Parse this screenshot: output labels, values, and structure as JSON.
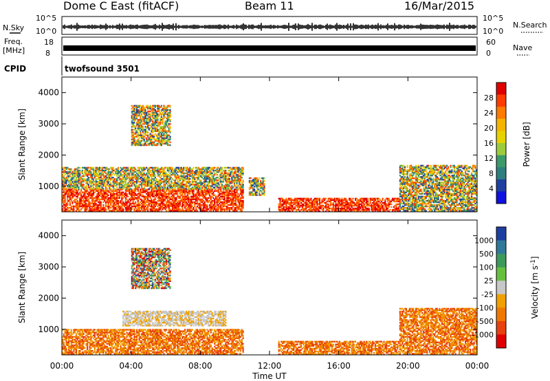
{
  "header": {
    "station": "Dome C East (fitACF)",
    "beam": "Beam 11",
    "date": "16/Mar/2015"
  },
  "status_panel": {
    "nsky_label": "N.Sky",
    "nsky_ticks": [
      "10^5",
      "10^0"
    ],
    "nsearch_label": "N.Search",
    "nsearch_ticks": [
      "10^5",
      "10^0"
    ],
    "freq_label_1": "Freq.",
    "freq_label_2": "[MHz]",
    "freq_ticks": [
      "18",
      "8"
    ],
    "nave_label": "Nave",
    "nave_ticks": [
      "60",
      "0"
    ],
    "cpid_label": "CPID",
    "cpid_value": "twofsound 3501"
  },
  "chart_data": [
    {
      "type": "heatmap",
      "name": "power",
      "ylabel": "Slant Range [km]",
      "yticks": [
        "1000",
        "2000",
        "3000",
        "4000"
      ],
      "ylim": [
        180,
        4500
      ],
      "xlim": [
        0,
        24
      ],
      "xticks": [
        "00:00",
        "04:00",
        "08:00",
        "12:00",
        "16:00",
        "20:00",
        "00:00"
      ],
      "colorbar": {
        "label": "Power [dB]",
        "ticks": [
          "28",
          "24",
          "20",
          "16",
          "12",
          "8",
          "4"
        ],
        "colors": [
          "#e00000",
          "#ff3c00",
          "#ff7a00",
          "#f4b400",
          "#e6d200",
          "#9ccc3c",
          "#3c9a6a",
          "#2d7f7f",
          "#2040a0",
          "#1010e0"
        ]
      },
      "regions": [
        {
          "t": [
            0.0,
            10.5
          ],
          "r": [
            200,
            900
          ],
          "level": "high"
        },
        {
          "t": [
            0.0,
            10.5
          ],
          "r": [
            900,
            1600
          ],
          "level": "mid"
        },
        {
          "t": [
            4.0,
            6.3
          ],
          "r": [
            2300,
            3600
          ],
          "level": "mid"
        },
        {
          "t": [
            10.8,
            11.7
          ],
          "r": [
            700,
            1300
          ],
          "level": "mid"
        },
        {
          "t": [
            12.5,
            19.5
          ],
          "r": [
            180,
            650
          ],
          "level": "high"
        },
        {
          "t": [
            19.5,
            24.0
          ],
          "r": [
            200,
            1700
          ],
          "level": "mid"
        }
      ]
    },
    {
      "type": "heatmap",
      "name": "velocity",
      "ylabel": "Slant Range [km]",
      "yticks": [
        "1000",
        "2000",
        "3000",
        "4000"
      ],
      "ylim": [
        180,
        4500
      ],
      "xlim": [
        0,
        24
      ],
      "xticks": [
        "00:00",
        "04:00",
        "08:00",
        "12:00",
        "16:00",
        "20:00",
        "00:00"
      ],
      "xlabel": "Time UT",
      "colorbar": {
        "label": "Velocity [m s^-1]",
        "ticks": [
          "1000",
          "500",
          "100",
          "25",
          "-25",
          "-100",
          "-500",
          "-1000"
        ],
        "colors": [
          "#1f3fa0",
          "#2f7a9a",
          "#3c9a5a",
          "#66c040",
          "#c8c8c8",
          "#f0a000",
          "#f07800",
          "#e84010",
          "#e00000"
        ]
      },
      "regions": [
        {
          "t": [
            0.0,
            10.5
          ],
          "r": [
            200,
            1000
          ],
          "level": "negative"
        },
        {
          "t": [
            3.5,
            9.5
          ],
          "r": [
            1100,
            1600
          ],
          "level": "near-zero"
        },
        {
          "t": [
            4.0,
            6.3
          ],
          "r": [
            2300,
            3600
          ],
          "level": "mixed"
        },
        {
          "t": [
            12.5,
            19.5
          ],
          "r": [
            180,
            650
          ],
          "level": "negative"
        },
        {
          "t": [
            19.5,
            24.0
          ],
          "r": [
            200,
            1700
          ],
          "level": "negative"
        }
      ]
    }
  ]
}
